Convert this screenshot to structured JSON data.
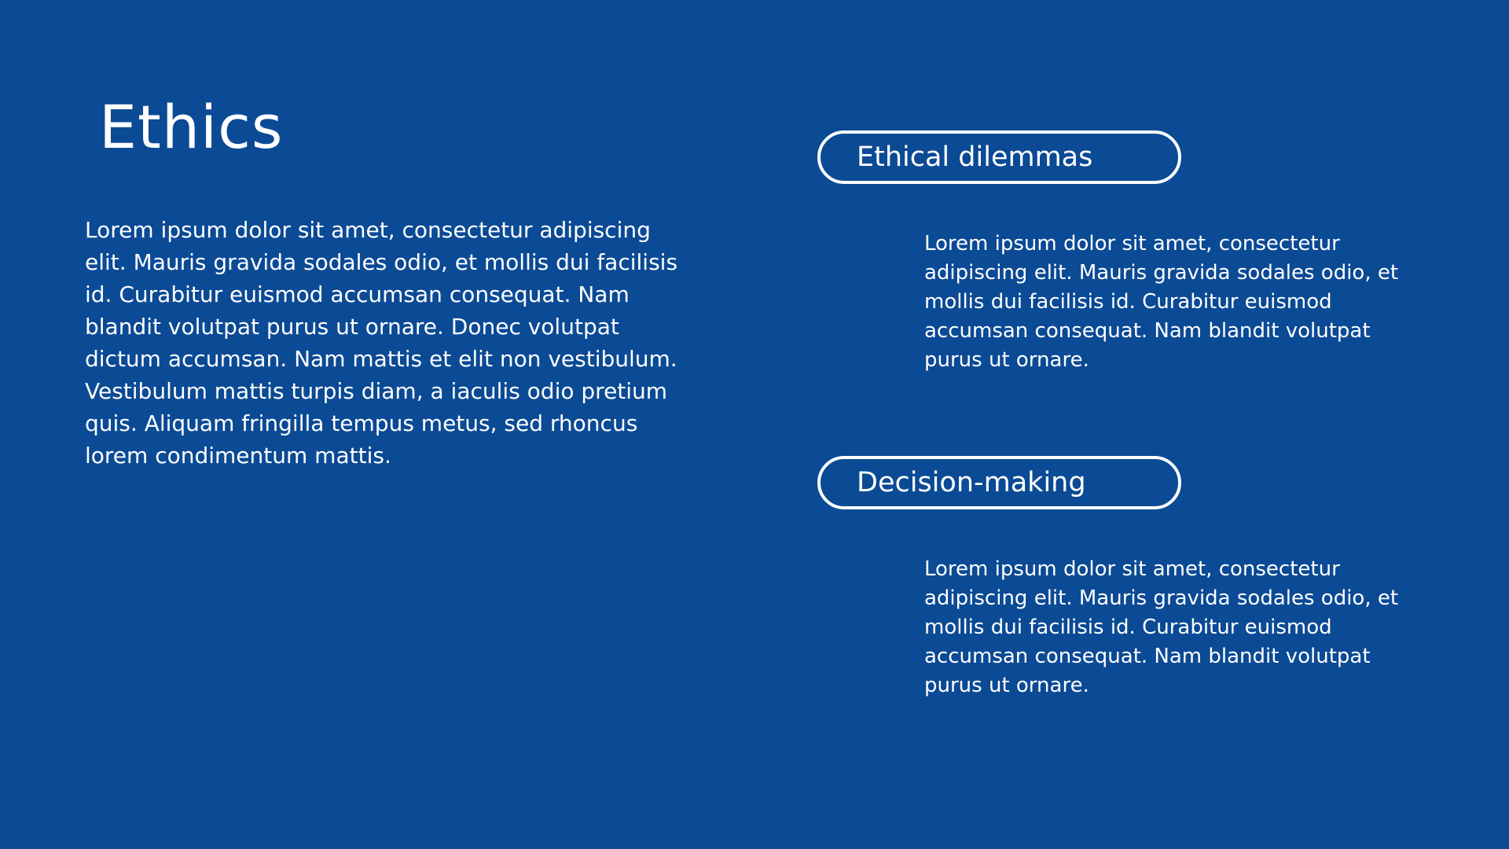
{
  "slide": {
    "title": "Ethics",
    "intro": "Lorem ipsum dolor sit amet, consectetur adipiscing elit. Mauris gravida sodales odio, et mollis dui facilisis id. Curabitur euismod accumsan consequat. Nam blandit volutpat purus ut ornare. Donec volutpat dictum accumsan. Nam mattis et elit non vestibulum. Vestibulum mattis turpis diam, a iaculis odio pretium quis. Aliquam fringilla tempus metus, sed rhoncus lorem condimentum mattis.",
    "sections": [
      {
        "heading": "Ethical dilemmas",
        "body": "Lorem ipsum dolor sit amet, consectetur adipiscing elit. Mauris gravida sodales odio, et mollis dui facilisis id. Curabitur euismod accumsan consequat. Nam blandit volutpat purus ut ornare."
      },
      {
        "heading": "Decision-making",
        "body": "Lorem ipsum dolor sit amet, consectetur adipiscing elit. Mauris gravida sodales odio, et mollis dui facilisis id. Curabitur euismod accumsan consequat. Nam blandit volutpat purus ut ornare."
      }
    ]
  },
  "colors": {
    "background": "#0b4a95",
    "text": "#ffffff",
    "pill_border": "#ffffff"
  }
}
